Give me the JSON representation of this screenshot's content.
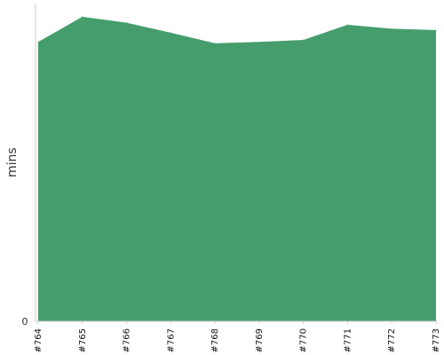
{
  "chart_data": {
    "type": "area",
    "title": "",
    "xlabel": "",
    "ylabel": "mins",
    "categories": [
      "#764",
      "#765",
      "#766",
      "#767",
      "#768",
      "#769",
      "#770",
      "#771",
      "#772",
      "#773"
    ],
    "series": [
      {
        "values": [
          42.2,
          46.0,
          45.1,
          43.6,
          42.0,
          42.2,
          42.5,
          44.8,
          44.2,
          44.0
        ]
      }
    ],
    "y_tick_labels": [
      "0"
    ],
    "ylim": [
      0,
      48
    ],
    "grid": false,
    "legend": "none",
    "colors": {
      "area": "#459d6d",
      "axis": "#cccccc",
      "text": "#111111"
    }
  }
}
